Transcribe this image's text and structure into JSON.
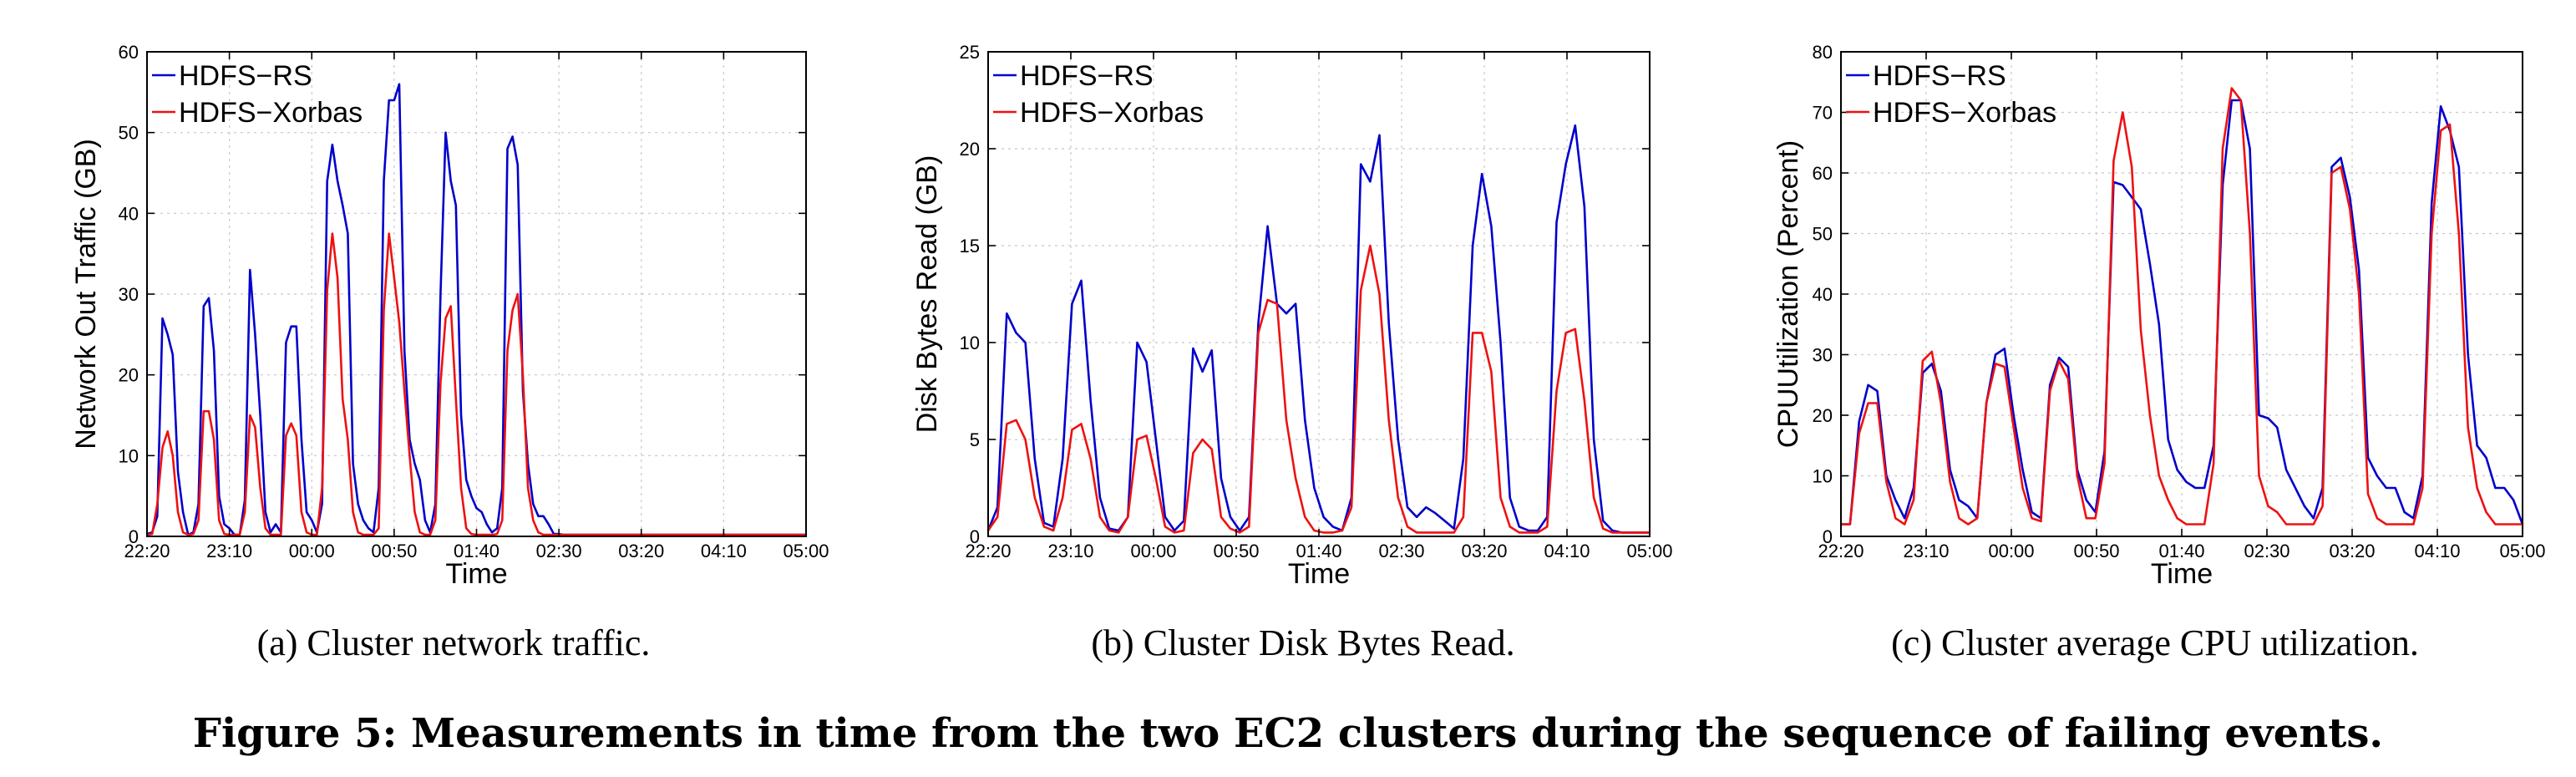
{
  "chart_data": [
    {
      "type": "line",
      "xlabel": "Time",
      "ylabel": "Network Out Traffic (GB)",
      "ylim": [
        0,
        60
      ],
      "yticks": [
        "0",
        "10",
        "20",
        "30",
        "40",
        "50",
        "60"
      ],
      "xticks": [
        "22:20",
        "23:10",
        "00:00",
        "00:50",
        "01:40",
        "02:30",
        "03:20",
        "04:10",
        "05:00"
      ],
      "x": [
        0,
        0.25,
        0.5,
        0.75,
        1,
        1.25,
        1.5,
        1.75,
        2,
        2.25,
        2.5,
        2.75,
        3,
        3.25,
        3.5,
        3.75,
        4,
        4.25,
        4.5,
        4.75,
        5,
        5.25,
        5.5,
        5.75,
        6,
        6.25,
        6.5,
        6.75,
        7,
        7.25,
        7.5,
        7.75,
        8,
        8.25,
        8.5,
        8.75,
        9,
        9.25,
        9.5,
        9.75,
        10,
        10.25,
        10.5,
        10.75,
        11,
        11.25,
        11.5,
        11.75,
        12,
        12.25,
        12.5,
        12.75,
        13,
        13.25,
        13.5,
        13.75,
        14,
        14.25,
        14.5,
        14.75,
        15,
        15.25,
        15.5,
        15.75,
        16,
        16.25,
        16.5,
        16.75,
        17,
        17.25,
        17.5,
        17.75,
        18,
        18.25,
        18.5,
        18.75,
        19,
        19.25,
        19.5,
        19.75,
        20,
        20.25,
        20.5,
        20.75,
        21,
        21.25,
        21.5,
        21.75,
        22,
        22.25,
        22.5,
        22.75,
        23,
        23.25,
        23.5,
        23.75,
        24,
        24.25,
        24.5,
        24.75,
        25,
        25.25,
        25.5,
        25.75,
        26,
        26.25,
        26.5,
        26.75,
        27,
        27.25,
        27.5,
        27.75,
        28,
        28.25,
        28.5,
        28.75,
        29,
        29.25,
        29.5,
        29.75,
        30,
        30.25,
        30.5,
        30.75,
        31,
        31.25,
        31.5,
        31.75,
        32
      ],
      "series": [
        {
          "name": "HDFS-RS",
          "color": "#0000cc",
          "values": [
            0.3,
            0.5,
            2.5,
            27,
            25,
            22.5,
            8,
            3,
            0.2,
            0.5,
            4,
            28.5,
            29.5,
            23,
            5,
            1.5,
            1.0,
            0.2,
            0.2,
            4.5,
            33,
            25,
            15,
            3,
            0.5,
            1.5,
            0.5,
            24,
            26,
            26,
            12,
            3,
            2.0,
            0.5,
            4,
            44,
            48.5,
            44,
            41,
            37.5,
            9,
            4,
            2.0,
            1.0,
            0.5,
            6,
            44,
            54,
            54,
            56,
            23,
            12,
            9,
            7,
            2.0,
            0.5,
            4,
            30,
            50,
            44,
            41,
            15,
            7,
            5,
            3.5,
            3,
            1.5,
            0.5,
            1,
            6,
            48,
            49.5,
            46,
            18,
            9,
            4,
            2.5,
            2.5,
            1.5,
            0.3,
            0.3,
            0.2,
            0.2,
            0.2,
            0.2,
            0.2,
            0.2,
            0.2,
            0.2,
            0.2,
            0.2,
            0.2,
            0.2,
            0.2,
            0.2,
            0.2,
            0.2,
            0.2,
            0.2,
            0.2,
            0.2,
            0.2,
            0.2,
            0.2,
            0.2,
            0.2,
            0.2,
            0.2,
            0.2,
            0.2,
            0.2,
            0.2,
            0.2,
            0.2,
            0.2,
            0.2,
            0.2,
            0.2,
            0.2,
            0.2,
            0.2,
            0.2,
            0.2,
            0.2,
            0.2,
            0.2,
            0.2,
            0.2,
            0.2
          ]
        },
        {
          "name": "HDFS-Xorbas",
          "color": "#ee1111",
          "values": [
            0.2,
            0.3,
            4,
            11,
            13,
            10,
            3,
            0.5,
            0.2,
            0.3,
            2,
            15.5,
            15.5,
            12,
            2,
            0.3,
            0.2,
            0.2,
            0.2,
            3,
            15,
            13.5,
            6,
            1,
            0.2,
            0.2,
            0.2,
            12.5,
            14,
            12.5,
            3,
            0.5,
            0.2,
            0.2,
            6,
            30.5,
            37.5,
            32,
            17,
            12,
            3,
            0.5,
            0.2,
            0.2,
            0.2,
            1,
            28,
            37.5,
            32,
            26.5,
            18,
            10,
            3,
            0.5,
            0.2,
            0.2,
            2,
            19,
            27,
            28.5,
            17,
            6,
            1,
            0.3,
            0.2,
            0.2,
            0.2,
            0.2,
            0.3,
            2,
            23,
            28,
            30,
            20,
            6,
            2,
            0.5,
            0.2,
            0.2,
            0.2,
            0.2,
            0.2,
            0.2,
            0.2,
            0.2,
            0.2,
            0.2,
            0.2,
            0.2,
            0.2,
            0.2,
            0.2,
            0.2,
            0.2,
            0.2,
            0.2,
            0.2,
            0.2,
            0.2,
            0.2,
            0.2,
            0.2,
            0.2,
            0.2,
            0.2,
            0.2,
            0.2,
            0.2,
            0.2,
            0.2,
            0.2,
            0.2,
            0.2,
            0.2,
            0.2,
            0.2,
            0.2,
            0.2,
            0.2,
            0.2,
            0.2,
            0.2,
            0.2,
            0.2,
            0.2,
            0.2,
            0.2,
            0.2,
            0.2
          ]
        }
      ],
      "caption": "(a) Cluster network traffic."
    },
    {
      "type": "line",
      "xlabel": "Time",
      "ylabel": "Disk Bytes Read (GB)",
      "ylim": [
        0,
        25
      ],
      "yticks": [
        "0",
        "5",
        "10",
        "15",
        "20",
        "25"
      ],
      "xticks": [
        "22:20",
        "23:10",
        "00:00",
        "00:50",
        "01:40",
        "02:30",
        "03:20",
        "04:10",
        "05:00"
      ],
      "series": [
        {
          "name": "HDFS-RS",
          "color": "#0000cc",
          "values": [
            0.3,
            1.5,
            11.5,
            10.5,
            10,
            4,
            0.7,
            0.5,
            4,
            12,
            13.2,
            7,
            2,
            0.4,
            0.3,
            1,
            10,
            9,
            5,
            1,
            0.3,
            0.8,
            9.7,
            8.5,
            9.6,
            3,
            1,
            0.3,
            1,
            11,
            16,
            12,
            11.5,
            12,
            6,
            2.5,
            1,
            0.5,
            0.3,
            2,
            19.2,
            18.3,
            20.7,
            11,
            5,
            1.5,
            1,
            1.5,
            1.2,
            0.8,
            0.4,
            4,
            15,
            18.7,
            16,
            10,
            2,
            0.5,
            0.3,
            0.3,
            1,
            16.2,
            19.2,
            21.2,
            17,
            5,
            0.8,
            0.3,
            0.2,
            0.2,
            0.2,
            0.2
          ]
        },
        {
          "name": "HDFS-Xorbas",
          "color": "#ee1111",
          "values": [
            0.3,
            1,
            5.8,
            6,
            5,
            2,
            0.5,
            0.3,
            2,
            5.5,
            5.8,
            4,
            1,
            0.3,
            0.2,
            1,
            5,
            5.2,
            3,
            0.5,
            0.2,
            0.3,
            4.3,
            5,
            4.5,
            1,
            0.4,
            0.2,
            0.5,
            10.5,
            12.2,
            12,
            6,
            3,
            1,
            0.3,
            0.2,
            0.2,
            0.3,
            1.5,
            12.7,
            15,
            12.5,
            6,
            2,
            0.5,
            0.2,
            0.2,
            0.2,
            0.2,
            0.2,
            1,
            10.5,
            10.5,
            8.5,
            2,
            0.5,
            0.2,
            0.2,
            0.2,
            0.5,
            7.5,
            10.5,
            10.7,
            7,
            2,
            0.4,
            0.2,
            0.2,
            0.2,
            0.2,
            0.2
          ]
        }
      ],
      "caption": "(b) Cluster Disk Bytes Read."
    },
    {
      "type": "line",
      "xlabel": "Time",
      "ylabel": "CPUUtilization (Percent)",
      "ylim": [
        0,
        80
      ],
      "yticks": [
        "0",
        "10",
        "20",
        "30",
        "40",
        "50",
        "60",
        "70",
        "80"
      ],
      "xticks": [
        "22:20",
        "23:10",
        "00:00",
        "00:50",
        "01:40",
        "02:30",
        "03:20",
        "04:10",
        "05:00"
      ],
      "series": [
        {
          "name": "HDFS-RS",
          "color": "#0000cc",
          "values": [
            2,
            2,
            19,
            25,
            24,
            10,
            6,
            3,
            8,
            27,
            28.5,
            24,
            11,
            6,
            5,
            3,
            22,
            30,
            31,
            20,
            11,
            4,
            3,
            25,
            29.5,
            28,
            11,
            6,
            4,
            14,
            58.5,
            58,
            56,
            54,
            45,
            35,
            16,
            11,
            9,
            8,
            8,
            15,
            58,
            72,
            72,
            64,
            20,
            19.5,
            18,
            11,
            8,
            5,
            3,
            8,
            61,
            62.5,
            56,
            44,
            13,
            10,
            8,
            8,
            4,
            3,
            10,
            55,
            71,
            67,
            61,
            30,
            15,
            13,
            8,
            8,
            6,
            2
          ]
        },
        {
          "name": "HDFS-Xorbas",
          "color": "#ee1111",
          "values": [
            2,
            2,
            17,
            22,
            22,
            9,
            3,
            2,
            6,
            29,
            30.5,
            22,
            9,
            3,
            2,
            3,
            22,
            28.5,
            28,
            18,
            8,
            3,
            2.5,
            24,
            29,
            26,
            10,
            3,
            3,
            12,
            62,
            70,
            61,
            34,
            20,
            10,
            6,
            3,
            2,
            2,
            2,
            12,
            64,
            74,
            72,
            50,
            10,
            5,
            4,
            2,
            2,
            2,
            2,
            5,
            60,
            61,
            54,
            40,
            7,
            3,
            2,
            2,
            2,
            2,
            8,
            50,
            67,
            68,
            50,
            18,
            8,
            4,
            2,
            2,
            2,
            2
          ]
        }
      ],
      "caption": "(c) Cluster average CPU utilization."
    }
  ],
  "legend_labels": [
    "HDFS−RS",
    "HDFS−Xorbas"
  ],
  "figure_caption": "Figure 5: Measurements in time from the two EC2 clusters during the sequence of failing events."
}
